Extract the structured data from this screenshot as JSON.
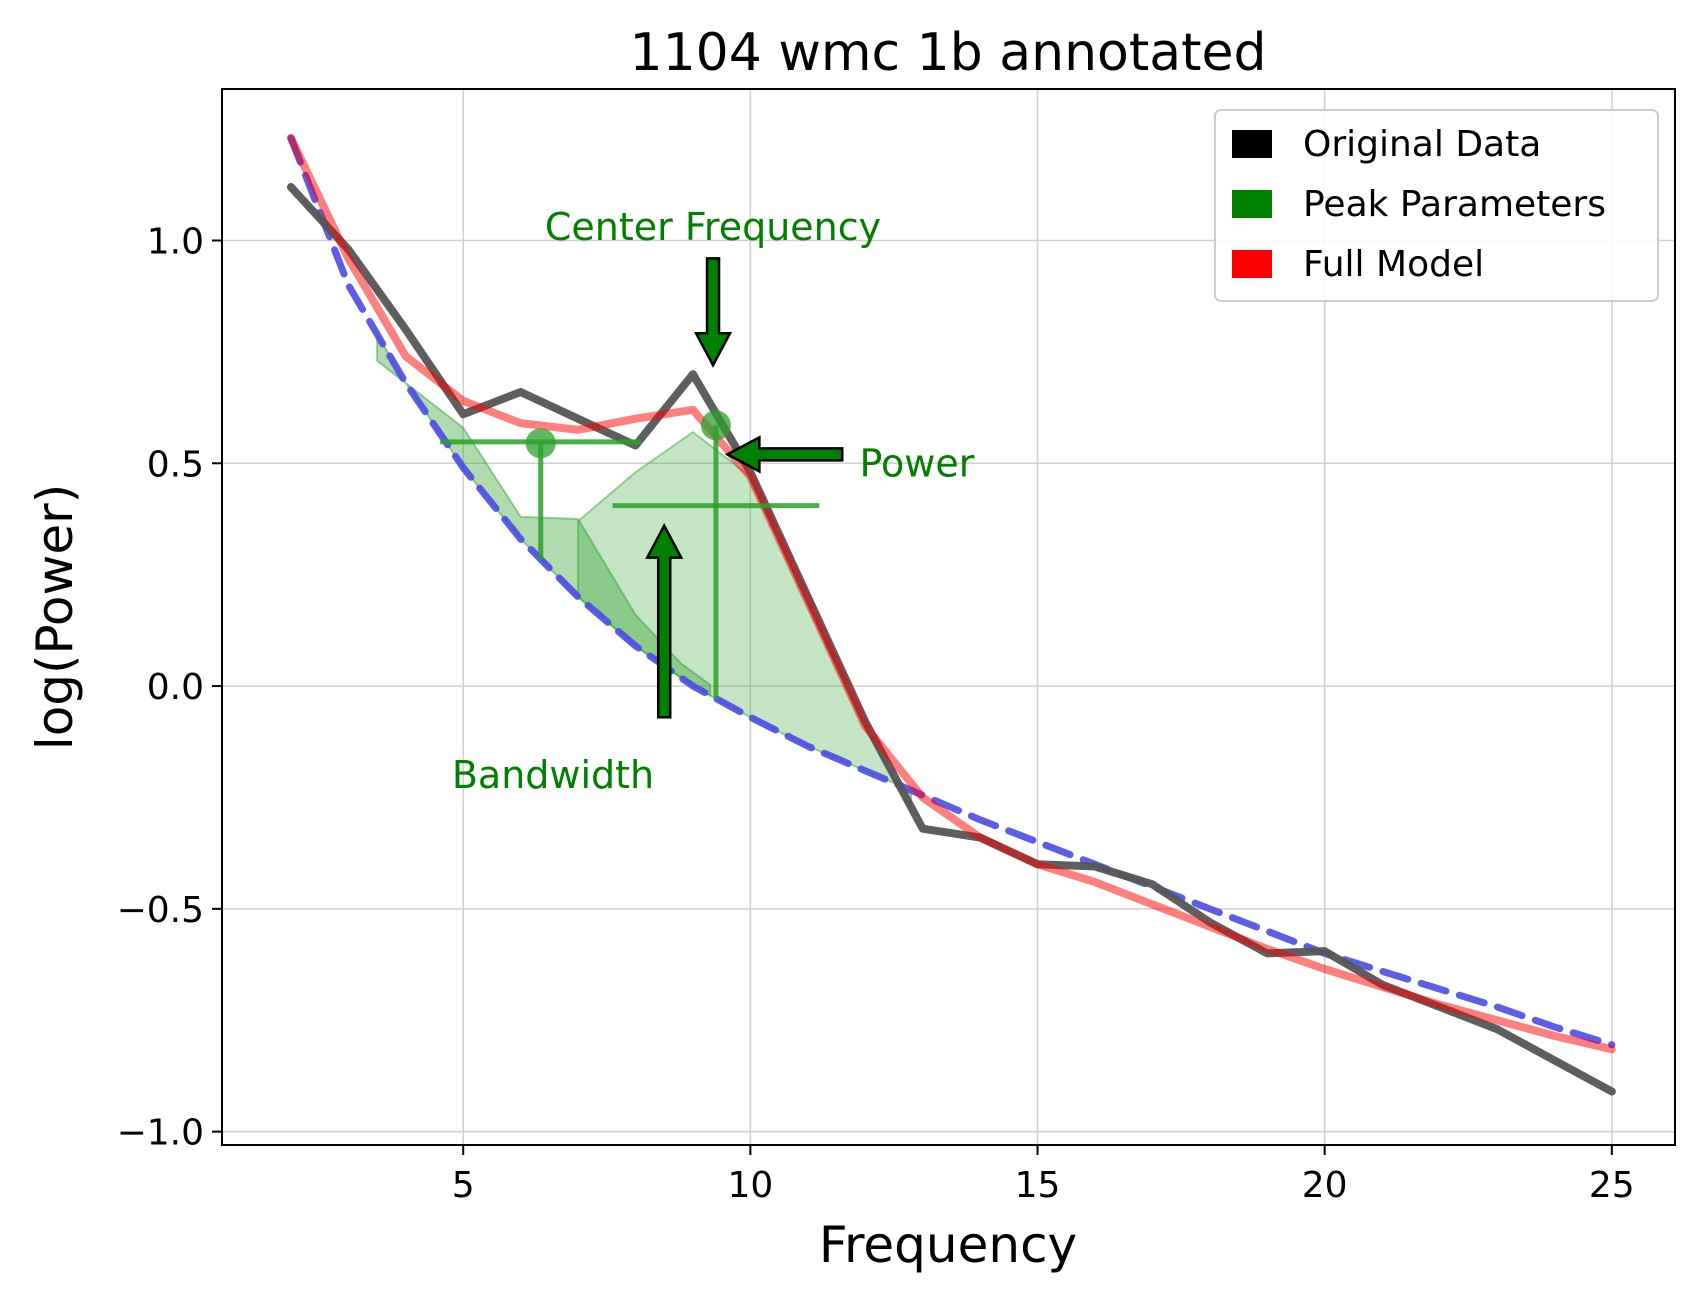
{
  "chart_data": {
    "type": "line",
    "title": "1104 wmc 1b annotated",
    "xlabel": "Frequency",
    "ylabel": "log(Power)",
    "xlim": [
      0.8,
      26.1
    ],
    "ylim": [
      -1.03,
      1.34
    ],
    "grid": true,
    "legend_position": "top-right",
    "x_ticks": [
      5,
      10,
      15,
      20,
      25
    ],
    "x_tick_labels": [
      "5",
      "10",
      "15",
      "20",
      "25"
    ],
    "y_ticks": [
      -1.0,
      -0.5,
      0.0,
      0.5,
      1.0
    ],
    "y_tick_labels": [
      "−1.0",
      "−0.5",
      "0.0",
      "0.5",
      "1.0"
    ],
    "legend": [
      {
        "key": "data",
        "label": "Original Data",
        "color": "#000000"
      },
      {
        "key": "peaks",
        "label": "Peak Parameters",
        "color": "#008000"
      },
      {
        "key": "model",
        "label": "Full Model",
        "color": "#ff0000"
      }
    ],
    "frequency": [
      2,
      3,
      4,
      5,
      6,
      7,
      8,
      9,
      10,
      11,
      12,
      13,
      14,
      15,
      16,
      17,
      18,
      19,
      20,
      21,
      22,
      23,
      24,
      25
    ],
    "series": [
      {
        "key": "data",
        "name": "Original Data",
        "color": "#555555",
        "values": [
          1.12,
          0.98,
          0.8,
          0.61,
          0.66,
          0.6,
          0.54,
          0.7,
          0.48,
          0.2,
          -0.08,
          -0.32,
          -0.34,
          -0.4,
          -0.405,
          -0.445,
          -0.53,
          -0.6,
          -0.595,
          -0.67,
          -0.72,
          -0.77,
          -0.84,
          -0.91
        ]
      },
      {
        "key": "model",
        "name": "Full Model",
        "color": "#ff0000",
        "values": [
          1.23,
          0.96,
          0.74,
          0.64,
          0.59,
          0.575,
          0.6,
          0.62,
          0.47,
          0.19,
          -0.09,
          -0.25,
          -0.34,
          -0.4,
          -0.44,
          -0.49,
          -0.54,
          -0.59,
          -0.635,
          -0.675,
          -0.715,
          -0.75,
          -0.785,
          -0.815
        ]
      },
      {
        "key": "aperiodic",
        "color": "#4b4be6",
        "values": [
          1.23,
          0.9,
          0.68,
          0.49,
          0.33,
          0.2,
          0.09,
          0.0,
          -0.07,
          -0.135,
          -0.19,
          -0.245,
          -0.3,
          -0.35,
          -0.4,
          -0.45,
          -0.5,
          -0.55,
          -0.6,
          -0.64,
          -0.68,
          -0.72,
          -0.765,
          -0.805
        ]
      }
    ],
    "peaks": [
      {
        "center_frequency": 6.35,
        "power": 0.545,
        "bandwidth": [
          4.6,
          8.1
        ],
        "bandwidth_level": 0.548,
        "fill_upper": [
          [
            3.5,
            0.73
          ],
          [
            5,
            0.58
          ],
          [
            6,
            0.38
          ],
          [
            7,
            0.375
          ],
          [
            8,
            0.16
          ],
          [
            8.8,
            0.05
          ],
          [
            9.3,
            0.003
          ]
        ]
      },
      {
        "center_frequency": 9.4,
        "power": 0.585,
        "bandwidth": [
          7.6,
          11.2
        ],
        "bandwidth_level": 0.405,
        "fill_upper": [
          [
            7,
            0.37
          ],
          [
            8,
            0.48
          ],
          [
            9,
            0.57
          ],
          [
            10,
            0.47
          ],
          [
            11,
            0.19
          ],
          [
            12,
            -0.09
          ],
          [
            12.8,
            -0.275
          ]
        ]
      }
    ],
    "annotations": [
      {
        "key": "center",
        "text": "Center Frequency",
        "x": 8.9,
        "y": 1.03
      },
      {
        "key": "power",
        "text": "Power",
        "x": 11.9,
        "y": 0.5
      },
      {
        "key": "bandwidth",
        "text": "Bandwidth",
        "x": 6.5,
        "y": -0.2
      }
    ]
  }
}
